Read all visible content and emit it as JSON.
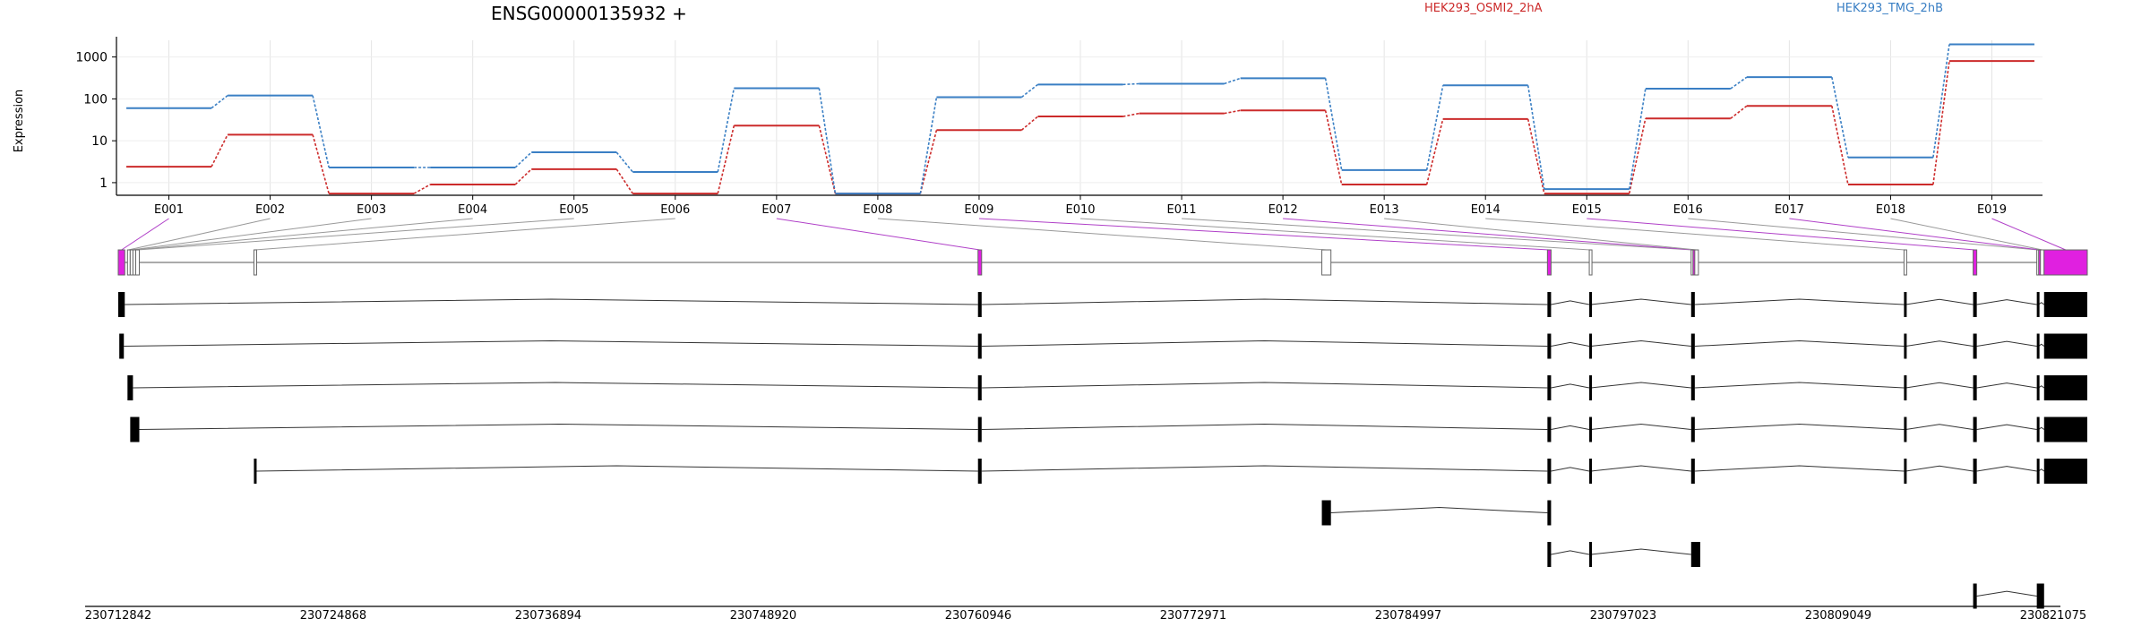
{
  "chart_data": {
    "type": "line",
    "title": "ENSG00000135932 +",
    "ylabel": "Expression",
    "yscale": "log",
    "ylim": [
      0.5,
      2500
    ],
    "yticks": [
      1,
      10,
      100,
      1000
    ],
    "ytick_labels": [
      "1",
      "10",
      "100",
      "1000"
    ],
    "categories": [
      "E001",
      "E002",
      "E003",
      "E004",
      "E005",
      "E006",
      "E007",
      "E008",
      "E009",
      "E010",
      "E011",
      "E012",
      "E013",
      "E014",
      "E015",
      "E016",
      "E017",
      "E018",
      "E019"
    ],
    "series": [
      {
        "name": "HEK293_OSMI2_2hA",
        "color": "#cc2b2b",
        "values": [
          2.4,
          14,
          0.55,
          0.9,
          2.1,
          0.55,
          23,
          0.55,
          18,
          38,
          45,
          53,
          0.9,
          33,
          0.55,
          34,
          68,
          0.9,
          800
        ]
      },
      {
        "name": "HEK293_TMG_2hB",
        "color": "#3a7fc4",
        "values": [
          60,
          120,
          2.3,
          2.3,
          5.3,
          1.8,
          180,
          0.55,
          110,
          220,
          230,
          310,
          2.0,
          210,
          0.7,
          175,
          330,
          4.0,
          2000
        ]
      }
    ],
    "grid": true,
    "legend": "top-right",
    "genome_axis": {
      "tick_labels": [
        "230712842",
        "230724868",
        "230736894",
        "230748920",
        "230760946",
        "230772971",
        "230784997",
        "230797023",
        "230809049",
        "230821075"
      ],
      "range": [
        230712842,
        230821075
      ]
    },
    "gene_model": {
      "exons": [
        {
          "id": "E001",
          "start": 230712842,
          "end": 230713200,
          "highlight": true
        },
        {
          "id": "E002",
          "start": 230713350,
          "end": 230713450,
          "highlight": false
        },
        {
          "id": "E003",
          "start": 230713500,
          "end": 230713650,
          "highlight": false
        },
        {
          "id": "E004",
          "start": 230713650,
          "end": 230713800,
          "highlight": false
        },
        {
          "id": "E005",
          "start": 230713800,
          "end": 230714000,
          "highlight": false
        },
        {
          "id": "E006",
          "start": 230720300,
          "end": 230720400,
          "highlight": false
        },
        {
          "id": "E007",
          "start": 230760100,
          "end": 230760300,
          "highlight": true
        },
        {
          "id": "E008",
          "start": 230779000,
          "end": 230779500,
          "highlight": false
        },
        {
          "id": "E009",
          "start": 230791400,
          "end": 230791600,
          "highlight": true
        },
        {
          "id": "E010",
          "start": 230793700,
          "end": 230793800,
          "highlight": false
        },
        {
          "id": "E011",
          "start": 230799300,
          "end": 230799400,
          "highlight": false
        },
        {
          "id": "E012",
          "start": 230799400,
          "end": 230799500,
          "highlight": true
        },
        {
          "id": "E013",
          "start": 230799500,
          "end": 230799700,
          "highlight": false
        },
        {
          "id": "E014",
          "start": 230811000,
          "end": 230811100,
          "highlight": false
        },
        {
          "id": "E015",
          "start": 230814800,
          "end": 230815000,
          "highlight": true
        },
        {
          "id": "E016",
          "start": 230818300,
          "end": 230818400,
          "highlight": false
        },
        {
          "id": "E017",
          "start": 230818400,
          "end": 230818500,
          "highlight": true
        },
        {
          "id": "E018",
          "start": 230818500,
          "end": 230818700,
          "highlight": false
        },
        {
          "id": "E019",
          "start": 230818700,
          "end": 230821075,
          "highlight": true
        }
      ],
      "transcripts": [
        [
          [
            230712842,
            230713200
          ],
          [
            230760100,
            230760300
          ],
          [
            230791400,
            230791600
          ],
          [
            230793700,
            230793800
          ],
          [
            230799300,
            230799500
          ],
          [
            230811000,
            230811100
          ],
          [
            230814800,
            230815000
          ],
          [
            230818300,
            230818400
          ],
          [
            230818700,
            230821075
          ]
        ],
        [
          [
            230712900,
            230713150
          ],
          [
            230760100,
            230760300
          ],
          [
            230791400,
            230791600
          ],
          [
            230793700,
            230793800
          ],
          [
            230799300,
            230799500
          ],
          [
            230811000,
            230811100
          ],
          [
            230814800,
            230815000
          ],
          [
            230818300,
            230818400
          ],
          [
            230818700,
            230821075
          ]
        ],
        [
          [
            230713350,
            230713650
          ],
          [
            230760100,
            230760300
          ],
          [
            230791400,
            230791600
          ],
          [
            230793700,
            230793800
          ],
          [
            230799300,
            230799500
          ],
          [
            230811000,
            230811100
          ],
          [
            230814800,
            230815000
          ],
          [
            230818300,
            230818400
          ],
          [
            230818700,
            230821075
          ]
        ],
        [
          [
            230713500,
            230714000
          ],
          [
            230760100,
            230760300
          ],
          [
            230791400,
            230791600
          ],
          [
            230793700,
            230793800
          ],
          [
            230799300,
            230799500
          ],
          [
            230811000,
            230811100
          ],
          [
            230814800,
            230815000
          ],
          [
            230818300,
            230818400
          ],
          [
            230818700,
            230821075
          ]
        ],
        [
          [
            230720300,
            230720400
          ],
          [
            230760100,
            230760300
          ],
          [
            230791400,
            230791600
          ],
          [
            230793700,
            230793800
          ],
          [
            230799300,
            230799500
          ],
          [
            230811000,
            230811100
          ],
          [
            230814800,
            230815000
          ],
          [
            230818300,
            230818400
          ],
          [
            230818700,
            230821075
          ]
        ],
        [
          [
            230779000,
            230779500
          ],
          [
            230791400,
            230791600
          ]
        ],
        [
          [
            230791400,
            230791600
          ],
          [
            230793700,
            230793800
          ],
          [
            230799300,
            230799800
          ]
        ],
        [
          [
            230814800,
            230815000
          ],
          [
            230818300,
            230818700
          ]
        ]
      ]
    }
  }
}
